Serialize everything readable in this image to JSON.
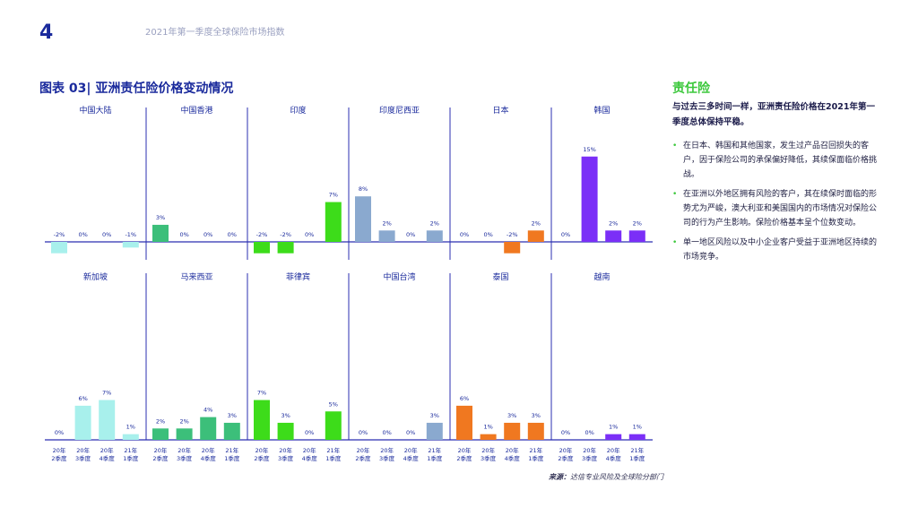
{
  "header": {
    "page_number": "4",
    "title": "2021年第一季度全球保险市场指数"
  },
  "figure": {
    "title": "图表 03| 亚洲责任险价格变动情况"
  },
  "sidebar": {
    "heading": "责任险",
    "lead": "与过去三多时间一样，亚洲责任险价格在2021年第一季度总体保持平稳。",
    "bullets": [
      "在日本、韩国和其他国家，发生过产品召回损失的客户，因于保险公司的承保偏好降低，其续保面临价格挑战。",
      "在亚洲以外地区拥有风险的客户，其在续保时面临的形势尤为严峻，澳大利亚和美国国内的市场情况对保险公司的行为产生影响。保险价格基本呈个位数变动。",
      "单一地区风险以及中小企业客户受益于亚洲地区持续的市场竞争。"
    ]
  },
  "source": {
    "label": "来源：",
    "text": "达信专业风险及全球险分部门"
  },
  "chart_data": {
    "type": "bar",
    "categories": [
      "20年\n2季度",
      "20年\n3季度",
      "20年\n4季度",
      "21年\n1季度"
    ],
    "value_suffix": "%",
    "ylim": [
      -2,
      15
    ],
    "panels": [
      {
        "name": "中国大陆",
        "color": "#a8f0ec",
        "values": [
          -2,
          0,
          0,
          -1
        ]
      },
      {
        "name": "中国香港",
        "color": "#3cbf7a",
        "values": [
          3,
          0,
          0,
          0
        ]
      },
      {
        "name": "印度",
        "color": "#3ddc1a",
        "values": [
          -2,
          -2,
          0,
          7
        ]
      },
      {
        "name": "印度尼西亚",
        "color": "#8aa9cf",
        "values": [
          8,
          2,
          0,
          2
        ]
      },
      {
        "name": "日本",
        "color": "#f07820",
        "values": [
          0,
          0,
          -2,
          2
        ]
      },
      {
        "name": "韩国",
        "color": "#7b2ff7",
        "values": [
          0,
          15,
          2,
          2
        ]
      },
      {
        "name": "新加坡",
        "color": "#a8f0ec",
        "values": [
          0,
          6,
          7,
          1
        ]
      },
      {
        "name": "马来西亚",
        "color": "#3cbf7a",
        "values": [
          2,
          2,
          4,
          3
        ]
      },
      {
        "name": "菲律宾",
        "color": "#3ddc1a",
        "values": [
          7,
          3,
          0,
          5
        ]
      },
      {
        "name": "中国台湾",
        "color": "#8aa9cf",
        "values": [
          0,
          0,
          0,
          3
        ]
      },
      {
        "name": "泰国",
        "color": "#f07820",
        "values": [
          6,
          1,
          3,
          3
        ]
      },
      {
        "name": "越南",
        "color": "#7b2ff7",
        "values": [
          0,
          0,
          1,
          1
        ]
      }
    ]
  }
}
